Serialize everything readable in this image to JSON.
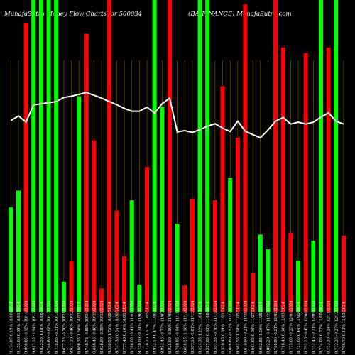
{
  "chart_data": {
    "type": "bar",
    "title": "MunafaSutra  Money Flow  Charts for 500034",
    "subtitle": "(BAJFINANCE)  MunafaSutra.com",
    "ylim": [
      0,
      100
    ],
    "colors": {
      "up": "#00ff00",
      "down": "#ff0000",
      "grid": "#8a5a00",
      "line": "#ffffff",
      "background": "#000000"
    },
    "categories": [
      "9,174.07 0.19% 10/10/2024",
      "9,152.60 0.89% 10/11/2024",
      "9,098.05 -0.15% 10/14/2024",
      "9,017.15 -1.94% 10/15/2024",
      "8,825.55 1.18% 10/16/2024",
      "8,766.80 -0.68% 10/17/2024",
      "8,738.85 -0.31% 10/18/2024",
      "8,677.25 -0.70% 10/21/2024",
      "8,637.20 -0.46% 10/22/2024",
      "8,606.35 1.56% 10/23/2024",
      "8,740.75 -0.85% 10/24/2024",
      "8,666.45 -0.46% 10/25/2024",
      "8,626.90 -0.35% 10/28/2024",
      "8,596.55 1.75% 10/29/2024",
      "8,747.30 0.34% 10/30/2024",
      "8,777.40 0.10% 10/31/2024",
      "8,786.05 -0.41% 11/01/2024",
      "8,750.00 -0.34% 11/04/2024",
      "8,720.20 1.51% 11/05/2024",
      "8,852.10 0.47% 11/06/2024",
      "8,893.45 -0.77% 11/07/2024",
      "8,825.00 -0.50% 11/08/2024",
      "8,780.85 -0.94% 11/11/2024",
      "8,698.15 -1.16% 11/12/2024",
      "8,597.10 -2.01% 11/13/2024",
      "8,424.35 1.22% 11/14/2024",
      "8,527.05 0.83% 11/18/2024",
      "8,597.55 -0.78% 11/19/2024",
      "8,530.45 0.89% 11/21/2024",
      "8,606.60 -0.52% 11/22/2024",
      "8,561.55 1.38% 11/25/2024",
      "8,679.90 -0.21% 11/26/2024",
      "8,661.65 0.36% 11/27/2024",
      "8,692.85 1.26% 11/28/2024",
      "8,802.20 -0.47% 11/29/2024",
      "8,760.90 -0.51% 12/02/2024",
      "8,716.40 0.68% 12/03/2024",
      "8,775.65 -0.25% 12/04/2024",
      "8,753.65 0.44% 12/05/2024",
      "8,792.25 -0.45% 12/06/2024",
      "8,752.45 -0.21% 12/09/2024",
      "8,734.05 0.22% 12/10/2024",
      "8,753.30 -0.24% 12/11/2024",
      "8,732.25 -0.27% 12/12/2024",
      "8,708.70 0.13% 12/13/2024"
    ],
    "series": [
      {
        "type": "bar",
        "directions": [
          "up",
          "up",
          "down",
          "up",
          "up",
          "up",
          "up",
          "up",
          "down",
          "up",
          "down",
          "down",
          "down",
          "down",
          "down",
          "down",
          "up",
          "up",
          "down",
          "up",
          "up",
          "down",
          "up",
          "down",
          "down",
          "up",
          "up",
          "down",
          "down",
          "up",
          "down",
          "down",
          "down",
          "up",
          "up",
          "down",
          "down",
          "down",
          "up",
          "down",
          "up",
          "up",
          "down",
          "up",
          "down"
        ],
        "values": [
          33.6,
          39.0,
          92.7,
          100.0,
          100.0,
          100.0,
          100.0,
          9.8,
          16.3,
          69.2,
          89.2,
          55.1,
          7.7,
          100.0,
          32.6,
          18.0,
          35.9,
          8.8,
          46.6,
          100.0,
          65.9,
          100.0,
          28.4,
          8.6,
          36.4,
          100.0,
          100.0,
          35.9,
          72.4,
          43.0,
          55.9,
          98.6,
          12.8,
          24.9,
          20.2,
          100.0,
          84.8,
          25.5,
          16.6,
          83.0,
          22.9,
          100.0,
          84.8,
          100.0,
          24.6
        ]
      },
      {
        "type": "line",
        "values": [
          61.4,
          62.9,
          60.9,
          66.4,
          66.8,
          67.1,
          67.5,
          68.8,
          69.2,
          69.8,
          70.4,
          69.5,
          68.6,
          67.5,
          66.5,
          65.3,
          64.4,
          64.4,
          65.7,
          63.8,
          66.8,
          68.6,
          57.8,
          58.2,
          57.6,
          58.5,
          59.6,
          60.4,
          59.0,
          57.9,
          61.2,
          58.0,
          56.9,
          55.9,
          58.4,
          61.2,
          62.4,
          60.3,
          60.9,
          60.3,
          60.9,
          62.5,
          63.9,
          61.2,
          60.3
        ]
      }
    ]
  }
}
